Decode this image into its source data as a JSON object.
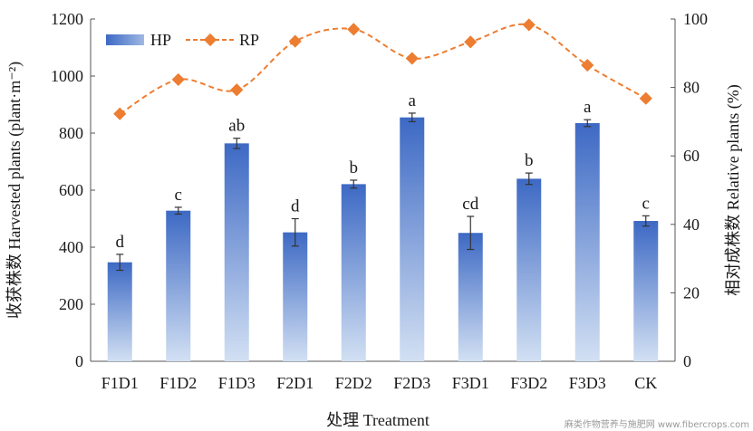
{
  "chart_data": {
    "type": "bar",
    "categories": [
      "F1D1",
      "F1D2",
      "F1D3",
      "F2D1",
      "F2D2",
      "F2D3",
      "F3D1",
      "F3D2",
      "F3D3",
      "CK"
    ],
    "series": [
      {
        "name": "HP",
        "kind": "bar",
        "axis": "left",
        "values": [
          347,
          528,
          764,
          452,
          621,
          855,
          450,
          640,
          835,
          492
        ],
        "error": [
          28,
          12,
          18,
          48,
          14,
          15,
          58,
          20,
          12,
          18
        ],
        "labels": [
          "d",
          "c",
          "ab",
          "d",
          "b",
          "a",
          "cd",
          "b",
          "a",
          "c"
        ]
      },
      {
        "name": "RP",
        "kind": "line",
        "axis": "right",
        "values": [
          72.3,
          82.3,
          79.3,
          93.5,
          97.0,
          88.5,
          93.3,
          98.3,
          86.5,
          76.8
        ]
      }
    ],
    "ylabel_left": "收获株数 Harvested plants (plant·m⁻²)",
    "ylabel_right": "相对成株数 Relative plants (%)",
    "xlabel": "处理 Treatment",
    "ylim_left": [
      0,
      1200
    ],
    "ylim_right": [
      0,
      100
    ],
    "yticks_left": [
      "0",
      "200",
      "400",
      "600",
      "800",
      "1000",
      "1200"
    ],
    "yticks_right": [
      "0",
      "20",
      "40",
      "60",
      "80",
      "100"
    ],
    "grid": false,
    "legend_position": "top-left",
    "colors": {
      "bar_top": "#3d69c4",
      "bar_bottom": "#d2e0f3",
      "line": "#ed7d31"
    }
  },
  "watermark": "麻类作物营养与施肥网 www.fibercrops.com"
}
